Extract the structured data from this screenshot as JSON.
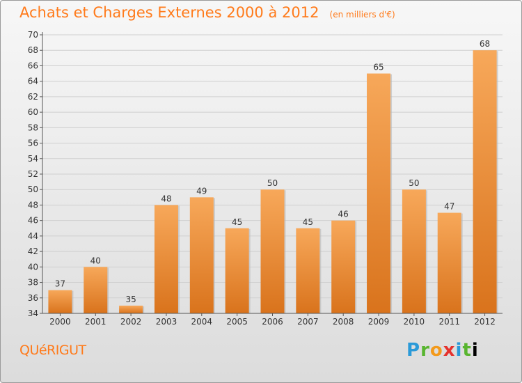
{
  "header": {
    "title": "Achats et Charges Externes 2000 à 2012",
    "subtitle": "(en milliers d'€)"
  },
  "commune": "QUéRIGUT",
  "logo": {
    "text": "Proxiti"
  },
  "colors": {
    "bar_top": "#f7a85a",
    "bar_bottom": "#d9731c",
    "grid": "#cfcfcf",
    "text": "#333333",
    "accent": "#ff7a1a"
  },
  "chart_data": {
    "type": "bar",
    "categories": [
      "2000",
      "2001",
      "2002",
      "2003",
      "2004",
      "2005",
      "2006",
      "2007",
      "2008",
      "2009",
      "2010",
      "2011",
      "2012"
    ],
    "values": [
      37,
      40,
      35,
      48,
      49,
      45,
      50,
      45,
      46,
      65,
      50,
      47,
      68
    ],
    "ylim": [
      34,
      70
    ],
    "yticks": [
      34,
      36,
      38,
      40,
      42,
      44,
      46,
      48,
      50,
      52,
      54,
      56,
      58,
      60,
      62,
      64,
      66,
      68,
      70
    ],
    "grid": true,
    "data_labels": true
  }
}
